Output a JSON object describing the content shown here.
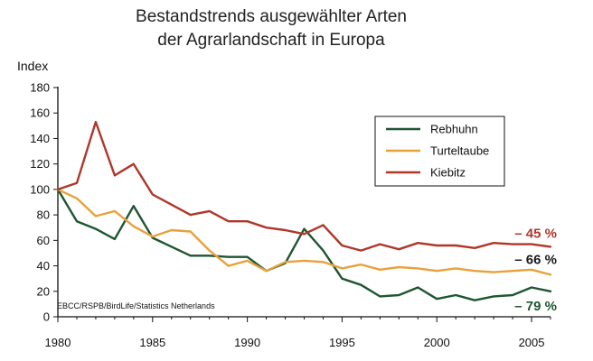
{
  "chart_data": {
    "type": "line",
    "title": "Bestandstrends ausgewählter Arten",
    "subtitle": "der Agrarlandschaft in Europa",
    "ylabel": "Index",
    "xlabel": "",
    "xlim": [
      1980,
      2006
    ],
    "ylim": [
      0,
      180
    ],
    "x_ticks": [
      1980,
      1985,
      1990,
      1995,
      2000,
      2005
    ],
    "y_ticks": [
      0,
      20,
      40,
      60,
      80,
      100,
      120,
      140,
      160,
      180
    ],
    "grid": false,
    "legend_position": "top-right",
    "source": "EBCC/RSPB/BirdLife/Statistics Netherlands",
    "x": [
      1980,
      1981,
      1982,
      1983,
      1984,
      1985,
      1986,
      1987,
      1988,
      1989,
      1990,
      1991,
      1992,
      1993,
      1994,
      1995,
      1996,
      1997,
      1998,
      1999,
      2000,
      2001,
      2002,
      2003,
      2004,
      2005,
      2006
    ],
    "series": [
      {
        "name": "Rebhuhn",
        "color": "#1e5631",
        "values": [
          100,
          75,
          69,
          61,
          87,
          62,
          55,
          48,
          48,
          47,
          47,
          36,
          42,
          69,
          52,
          30,
          25,
          16,
          17,
          23,
          14,
          17,
          13,
          16,
          17,
          23,
          20
        ],
        "end_label": "– 79 %"
      },
      {
        "name": "Turteltaube",
        "color": "#e8a13c",
        "values": [
          100,
          93,
          79,
          83,
          71,
          63,
          68,
          67,
          52,
          40,
          44,
          36,
          43,
          44,
          43,
          38,
          41,
          37,
          39,
          38,
          36,
          38,
          36,
          35,
          36,
          37,
          33
        ],
        "end_label": "– 66 %"
      },
      {
        "name": "Kiebitz",
        "color": "#b0362a",
        "values": [
          100,
          105,
          153,
          111,
          120,
          96,
          88,
          80,
          83,
          75,
          75,
          70,
          68,
          65,
          72,
          56,
          52,
          57,
          53,
          58,
          56,
          56,
          54,
          58,
          57,
          57,
          55
        ],
        "end_label": "– 45 %"
      }
    ],
    "end_label_colors": {
      "Rebhuhn": "#1e5631",
      "Turteltaube": "#1a1a1a",
      "Kiebitz": "#b0362a"
    }
  }
}
